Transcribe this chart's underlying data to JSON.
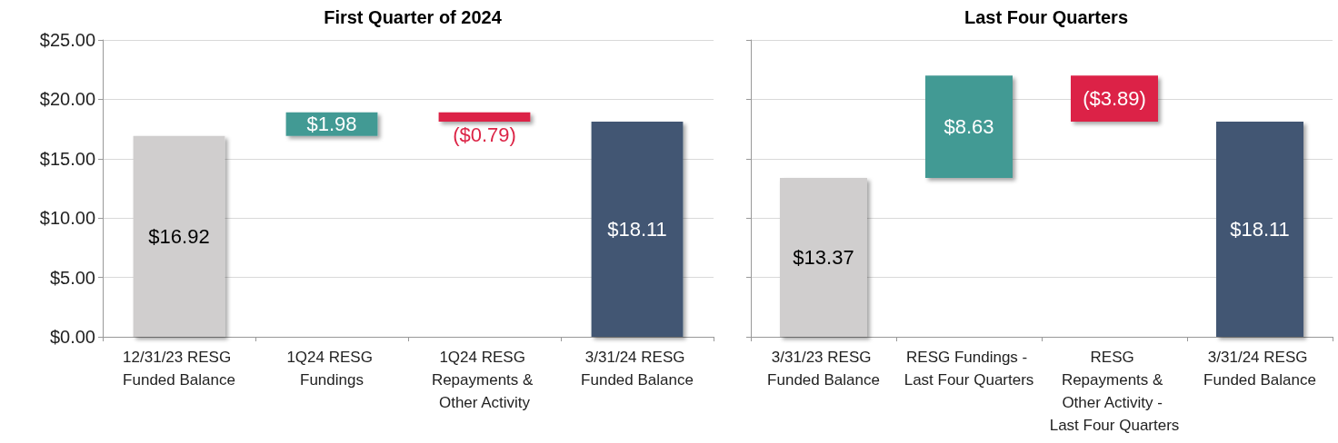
{
  "chart_data": [
    {
      "type": "bar",
      "title": "First Quarter of 2024",
      "categories": [
        "12/31/23 RESG Funded Balance",
        "1Q24 RESG Fundings",
        "1Q24 RESG Repayments & Other Activity",
        "3/31/24 RESG Funded Balance"
      ],
      "values": [
        16.92,
        1.98,
        -0.79,
        18.11
      ],
      "base": [
        0,
        16.92,
        18.9,
        0
      ],
      "colors": [
        "#d0cece",
        "#439a94",
        "#dc2446",
        "#425773"
      ],
      "value_labels": [
        "$16.92",
        "$1.98",
        "($0.79)",
        "$18.11"
      ],
      "ylim": [
        0,
        25
      ],
      "yticks": [
        {
          "value": 0,
          "label": "$0.00"
        },
        {
          "value": 5,
          "label": "$5.00"
        },
        {
          "value": 10,
          "label": "$10.00"
        },
        {
          "value": 15,
          "label": "$15.00"
        },
        {
          "value": 20,
          "label": "$20.00"
        },
        {
          "value": 25,
          "label": "$25.00"
        }
      ],
      "grid": "y"
    },
    {
      "type": "bar",
      "title": "Last Four Quarters",
      "categories": [
        "3/31/23 RESG Funded Balance",
        "RESG Fundings - Last Four Quarters",
        "RESG Repayments & Other Activity - Last Four Quarters",
        "3/31/24 RESG Funded Balance"
      ],
      "values": [
        13.37,
        8.63,
        -3.89,
        18.11
      ],
      "base": [
        0,
        13.37,
        22.0,
        0
      ],
      "colors": [
        "#d0cece",
        "#439a94",
        "#dc2446",
        "#425773"
      ],
      "value_labels": [
        "$13.37",
        "$8.63",
        "($3.89)",
        "$18.11"
      ],
      "ylim": [
        0,
        25
      ],
      "yticks": [
        {
          "value": 0,
          "label": null
        },
        {
          "value": 5,
          "label": null
        },
        {
          "value": 10,
          "label": null
        },
        {
          "value": 15,
          "label": null
        },
        {
          "value": 20,
          "label": null
        },
        {
          "value": 25,
          "label": null
        }
      ],
      "grid": "y",
      "tick_labels": "x"
    }
  ]
}
